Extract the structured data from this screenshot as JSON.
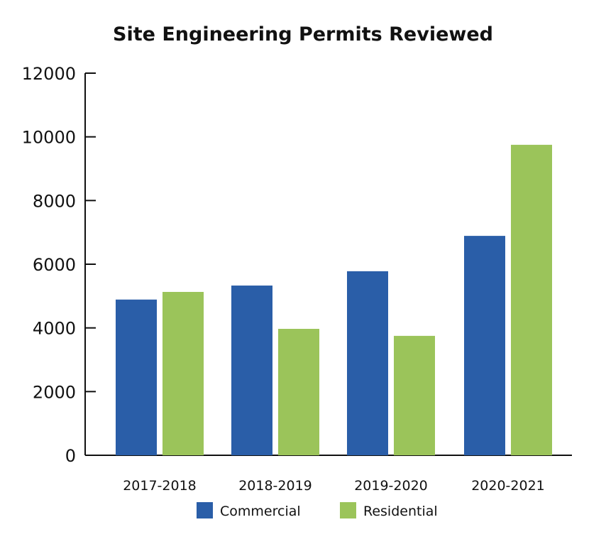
{
  "chart_data": {
    "type": "bar",
    "title": "Site Engineering Permits Reviewed",
    "xlabel": "",
    "ylabel": "",
    "ylim": [
      0,
      12000
    ],
    "yticks": [
      0,
      2000,
      4000,
      6000,
      8000,
      10000,
      12000
    ],
    "categories": [
      "2017-2018",
      "2018-2019",
      "2019-2020",
      "2020-2021"
    ],
    "series": [
      {
        "name": "Commercial",
        "color": "#2a5ea8",
        "values": [
          4890,
          5330,
          5780,
          6890
        ]
      },
      {
        "name": "Residential",
        "color": "#9bc45a",
        "values": [
          5130,
          3970,
          3750,
          9750
        ]
      }
    ],
    "grid": false,
    "legend": "bottom"
  }
}
